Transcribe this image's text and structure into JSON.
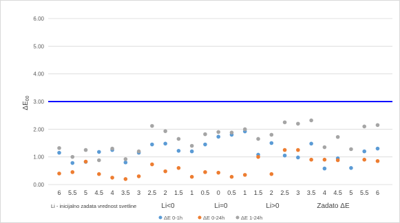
{
  "chart_data": {
    "type": "scatter",
    "ylabel": "ΔE00",
    "ylabel_main": "ΔE",
    "ylabel_sub": "00",
    "ylim": [
      0,
      6
    ],
    "yticks": [
      "0.00",
      "1.00",
      "2.00",
      "3.00",
      "4.00",
      "5.00",
      "6.00"
    ],
    "grid": true,
    "legend_position": "bottom",
    "categories": [
      "6",
      "5.5",
      "5",
      "4.5",
      "4",
      "3.5",
      "3",
      "2.5",
      "2",
      "1.5",
      "1",
      "0.5",
      "0",
      "0.5",
      "1",
      "1.5",
      "2",
      "2.5",
      "3",
      "3.5",
      "4",
      "4.5",
      "5",
      "5.5",
      "6"
    ],
    "series": [
      {
        "name": "ΔE 0-1h",
        "color": "#5b9bd5",
        "values": [
          1.15,
          0.78,
          0.82,
          1.18,
          1.25,
          0.8,
          1.15,
          1.45,
          1.48,
          1.22,
          1.2,
          1.45,
          1.73,
          1.8,
          1.92,
          1.08,
          1.5,
          1.05,
          0.98,
          1.48,
          0.58,
          0.95,
          0.6,
          1.2,
          1.3
        ]
      },
      {
        "name": "ΔE 0-24h",
        "color": "#ed7d31",
        "values": [
          0.4,
          0.45,
          0.83,
          0.38,
          0.25,
          0.2,
          0.3,
          0.73,
          0.48,
          0.6,
          0.28,
          0.45,
          0.43,
          0.28,
          0.35,
          1.0,
          0.38,
          1.25,
          1.25,
          0.9,
          0.9,
          0.88,
          null,
          0.9,
          0.85
        ]
      },
      {
        "name": "ΔE 1-24h",
        "color": "#a5a5a5",
        "values": [
          1.32,
          1.0,
          1.25,
          0.88,
          1.3,
          0.92,
          1.2,
          2.12,
          1.93,
          1.65,
          1.4,
          1.82,
          1.9,
          1.88,
          2.0,
          1.65,
          1.8,
          2.25,
          2.2,
          2.32,
          1.35,
          1.72,
          1.28,
          2.1,
          2.15
        ]
      }
    ],
    "reference_line": {
      "y": 3.0,
      "color": "#0000ff"
    },
    "annotations": [
      {
        "text": "Li - inicijalno zadata vrednost svetline"
      },
      {
        "text": "Li<0"
      },
      {
        "text": "Li=0"
      },
      {
        "text": "Li>0"
      },
      {
        "text": "Zadato ΔE"
      }
    ]
  }
}
